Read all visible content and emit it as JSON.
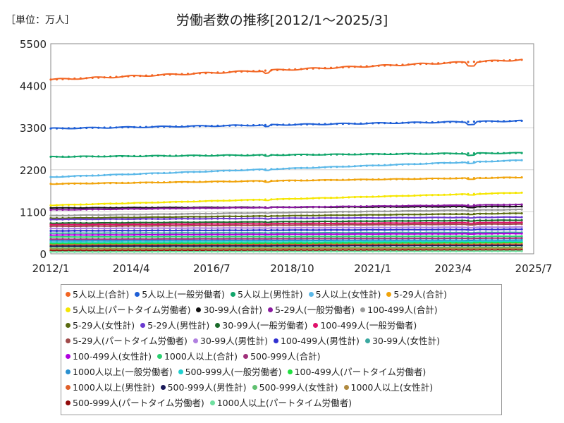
{
  "unit_label": "［単位：万人］",
  "chart_data": {
    "type": "line",
    "title": "労働者数の推移[2012/1～2025/3]",
    "ylim": [
      0,
      5500
    ],
    "y_ticks": [
      "0",
      "1100",
      "2200",
      "3300",
      "4400",
      "5500"
    ],
    "x_ticks": [
      "2012/1",
      "2014/4",
      "2016/7",
      "2018/10",
      "2021/1",
      "2023/4",
      "2025/7"
    ],
    "grid": true,
    "legend_position": "bottom",
    "series": [
      {
        "name": "5人以上(合計)",
        "color": "#f26522",
        "start": 4560,
        "end": 5080
      },
      {
        "name": "5人以上(一般労働者)",
        "color": "#1f5fd6",
        "start": 3280,
        "end": 3480
      },
      {
        "name": "5人以上(男性計)",
        "color": "#10a56a",
        "start": 2540,
        "end": 2640
      },
      {
        "name": "5人以上(女性計)",
        "color": "#5bb8e8",
        "start": 2010,
        "end": 2450
      },
      {
        "name": "5-29人(合計)",
        "color": "#f0a30a",
        "start": 1830,
        "end": 2000
      },
      {
        "name": "5人以上(パートタイム労働者)",
        "color": "#f5e600",
        "start": 1270,
        "end": 1600
      },
      {
        "name": "30-99人(合計)",
        "color": "#111111",
        "start": 1200,
        "end": 1240
      },
      {
        "name": "5-29人(一般労働者)",
        "color": "#8a1aa0",
        "start": 1150,
        "end": 1290
      },
      {
        "name": "100-499人(合計)",
        "color": "#9a9a9a",
        "start": 1000,
        "end": 1160
      },
      {
        "name": "5-29人(女性計)",
        "color": "#5a6a10",
        "start": 930,
        "end": 1060
      },
      {
        "name": "5-29人(男性計)",
        "color": "#6a3ad0",
        "start": 900,
        "end": 960
      },
      {
        "name": "30-99人(一般労働者)",
        "color": "#1a6a2a",
        "start": 800,
        "end": 880
      },
      {
        "name": "100-499人(一般労働者)",
        "color": "#e0106a",
        "start": 760,
        "end": 820
      },
      {
        "name": "5-29人(パートタイム労働者)",
        "color": "#a04a4a",
        "start": 720,
        "end": 780
      },
      {
        "name": "30-99人(男性計)",
        "color": "#b080e0",
        "start": 660,
        "end": 700
      },
      {
        "name": "100-499人(男性計)",
        "color": "#3030d0",
        "start": 600,
        "end": 640
      },
      {
        "name": "30-99人(女性計)",
        "color": "#3aa8a0",
        "start": 540,
        "end": 560
      },
      {
        "name": "100-499人(女性計)",
        "color": "#b000e0",
        "start": 490,
        "end": 530
      },
      {
        "name": "1000人以上(合計)",
        "color": "#2ad070",
        "start": 440,
        "end": 460
      },
      {
        "name": "500-999人(合計)",
        "color": "#a0307a",
        "start": 380,
        "end": 410
      },
      {
        "name": "1000人以上(一般労働者)",
        "color": "#2a90d0",
        "start": 340,
        "end": 360
      },
      {
        "name": "500-999人(一般労働者)",
        "color": "#20d0d0",
        "start": 300,
        "end": 320
      },
      {
        "name": "100-499人(パートタイム労働者)",
        "color": "#20e040",
        "start": 260,
        "end": 290
      },
      {
        "name": "1000人以上(男性計)",
        "color": "#e0602a",
        "start": 230,
        "end": 250
      },
      {
        "name": "500-999人(男性計)",
        "color": "#1a1a5a",
        "start": 200,
        "end": 220
      },
      {
        "name": "500-999人(女性計)",
        "color": "#60c070",
        "start": 150,
        "end": 170
      },
      {
        "name": "1000人以上(女性計)",
        "color": "#b08a40",
        "start": 120,
        "end": 140
      },
      {
        "name": "500-999人(パートタイム労働者)",
        "color": "#900a0a",
        "start": 80,
        "end": 100
      },
      {
        "name": "1000人以上(パートタイム労働者)",
        "color": "#70e0a0",
        "start": 50,
        "end": 70
      }
    ]
  }
}
